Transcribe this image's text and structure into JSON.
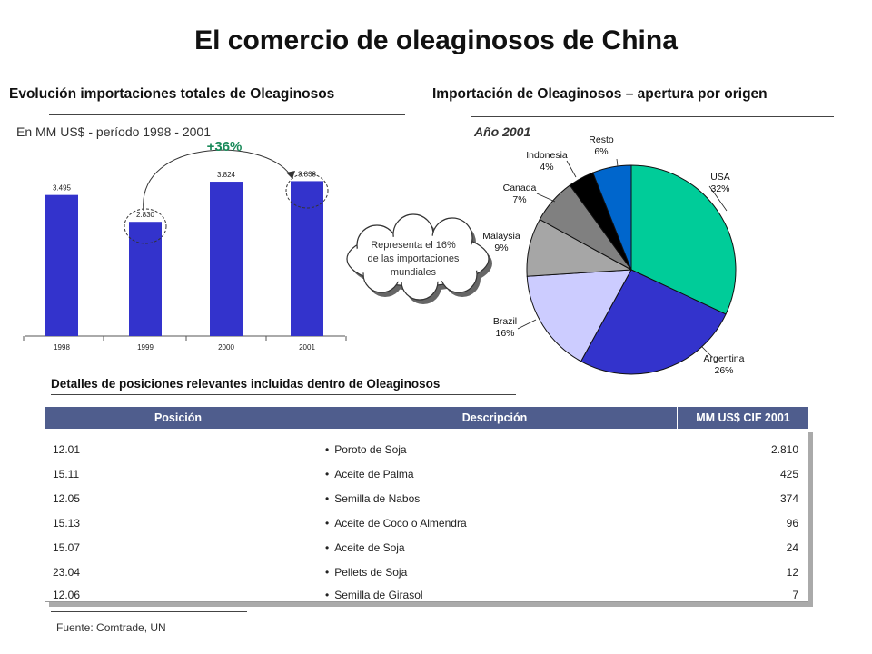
{
  "title": "El comercio de oleaginosos de China",
  "bar_section": {
    "title": "Evolución importaciones totales de Oleaginosos",
    "subtitle": "En MM US$ - período 1998 - 2001",
    "growth_label": "+36%"
  },
  "pie_section": {
    "title": "Importación de Oleaginosos – apertura por origen",
    "subtitle": "Año 2001",
    "callout": [
      "Representa el 16%",
      "de las importaciones",
      "mundiales"
    ]
  },
  "chart_data": [
    {
      "type": "bar",
      "categories": [
        "1998",
        "1999",
        "2000",
        "2001"
      ],
      "values": [
        3495,
        2830,
        3824,
        3838
      ],
      "value_labels": [
        "3.495",
        "2.830",
        "3.824",
        "3.838"
      ],
      "ylim": [
        0,
        4500
      ],
      "color": "#3333cc",
      "grid": false
    },
    {
      "type": "pie",
      "slices": [
        {
          "name": "USA",
          "value": 32,
          "label": "32%",
          "color": "#00cc99"
        },
        {
          "name": "Argentina",
          "value": 26,
          "label": "26%",
          "color": "#3333cc"
        },
        {
          "name": "Brazil",
          "value": 16,
          "label": "16%",
          "color": "#ccccff"
        },
        {
          "name": "Malaysia",
          "value": 9,
          "label": "9%",
          "color": "#a6a6a6"
        },
        {
          "name": "Canada",
          "value": 7,
          "label": "7%",
          "color": "#808080"
        },
        {
          "name": "Indonesia",
          "value": 4,
          "label": "4%",
          "color": "#000000"
        },
        {
          "name": "Resto",
          "value": 6,
          "label": "6%",
          "color": "#0066cc"
        }
      ]
    }
  ],
  "table": {
    "title": "Detalles de posiciones relevantes incluidas dentro de Oleaginosos",
    "headers": [
      "Posición",
      "Descripción",
      "MM US$ CIF 2001"
    ],
    "rows": [
      {
        "pos": "12.01",
        "desc": "Poroto de Soja",
        "val": "2.810"
      },
      {
        "pos": "15.11",
        "desc": "Aceite de Palma",
        "val": "425"
      },
      {
        "pos": "12.05",
        "desc": "Semilla de Nabos",
        "val": "374"
      },
      {
        "pos": "15.13",
        "desc": "Aceite de Coco o Almendra",
        "val": "96"
      },
      {
        "pos": "15.07",
        "desc": "Aceite de Soja",
        "val": "24"
      },
      {
        "pos": "23.04",
        "desc": "Pellets de Soja",
        "val": "12"
      },
      {
        "pos": "12.06",
        "desc": "Semilla de Girasol",
        "val": "7"
      }
    ],
    "bullet": "•"
  },
  "source": "Fuente: Comtrade, UN"
}
